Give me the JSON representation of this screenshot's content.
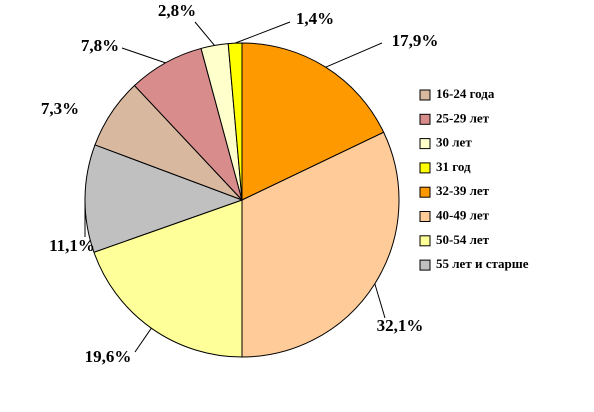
{
  "chart_data": {
    "type": "pie",
    "categories": [
      "16-24 года",
      "25-29 лет",
      "30 лет",
      "31 год",
      "32-39 лет",
      "40-49 лет",
      "50-54 лет",
      "55 лет и старше"
    ],
    "values": [
      7.3,
      7.8,
      2.8,
      1.4,
      17.9,
      32.1,
      19.6,
      11.1
    ],
    "value_labels": [
      "7,3%",
      "7,8%",
      "2,8%",
      "1,4%",
      "17,9%",
      "32,1%",
      "19,6%",
      "11,1%"
    ],
    "colors": [
      "#d9b8a0",
      "#d98c8c",
      "#ffffcc",
      "#ffff00",
      "#ff9900",
      "#ffcc99",
      "#ffff99",
      "#c0c0c0"
    ],
    "legend": "right"
  }
}
